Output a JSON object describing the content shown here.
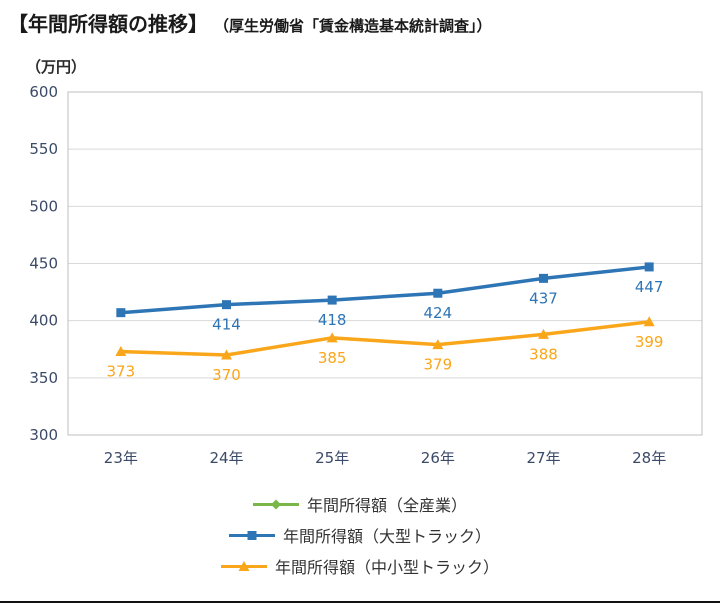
{
  "header": {
    "title": "【年間所得額の推移】",
    "source": "（厚生労働省「賃金構造基本統計調査」）"
  },
  "chart_data": {
    "type": "line",
    "title": "年間所得額の推移",
    "unit_label": "（万円）",
    "categories": [
      "23年",
      "24年",
      "25年",
      "26年",
      "27年",
      "28年"
    ],
    "ylim": [
      300,
      600
    ],
    "ytick_step": 50,
    "grid": true,
    "legend_position": "bottom",
    "series": [
      {
        "name": "年間所得額（全産業）",
        "color": "#7ab648",
        "marker": "diamond",
        "values": [],
        "labels": []
      },
      {
        "name": "年間所得額（大型トラック）",
        "color": "#2e75b6",
        "marker": "square",
        "values": [
          407,
          414,
          418,
          424,
          437,
          447
        ],
        "labels": [
          "",
          "414",
          "418",
          "424",
          "437",
          "447"
        ]
      },
      {
        "name": "年間所得額（中小型トラック）",
        "color": "#faa61a",
        "marker": "triangle",
        "values": [
          373,
          370,
          385,
          379,
          388,
          399
        ],
        "labels": [
          "373",
          "370",
          "385",
          "379",
          "388",
          "399"
        ]
      }
    ]
  },
  "colors": {
    "gridline": "#d9d9d9",
    "plot_border": "#bfbfbf",
    "axis_text": "#3b4a68"
  }
}
